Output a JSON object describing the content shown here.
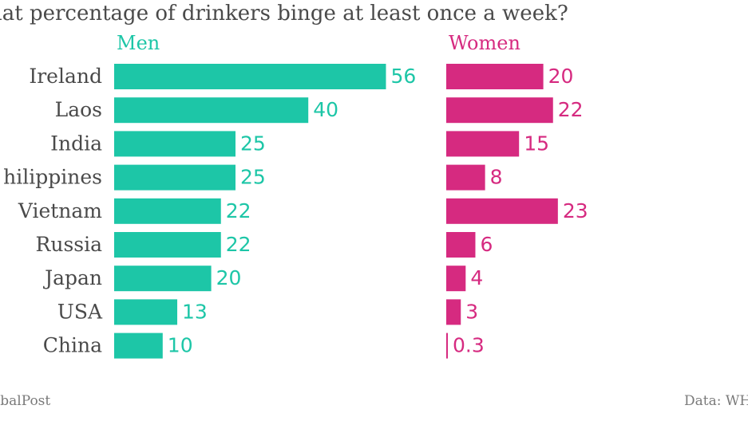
{
  "header": {
    "title": "hat percentage of drinkers binge at least once a week?"
  },
  "legend": {
    "men": "Men",
    "women": "Women"
  },
  "colors": {
    "men": "#1dc6a7",
    "women": "#d62a80",
    "label": "#4a4a4a"
  },
  "chart_data": {
    "type": "bar",
    "title": "hat percentage of drinkers binge at least once a week?",
    "categories": [
      "Ireland",
      "Laos",
      "India",
      "hilippines",
      "Vietnam",
      "Russia",
      "Japan",
      "USA",
      "China"
    ],
    "series": [
      {
        "name": "Men",
        "values": [
          56,
          40,
          25,
          25,
          22,
          22,
          20,
          13,
          10
        ],
        "labels": [
          "56",
          "40",
          "25",
          "25",
          "22",
          "22",
          "20",
          "13",
          "10"
        ]
      },
      {
        "name": "Women",
        "values": [
          20,
          22,
          15,
          8,
          23,
          6,
          4,
          3,
          0.3
        ],
        "labels": [
          "20",
          "22",
          "15",
          "8",
          "23",
          "6",
          "4",
          "3",
          "0.3"
        ]
      }
    ],
    "orientation": "horizontal",
    "grid": false,
    "legend_placement": "top"
  },
  "footer": {
    "source_left": "obalPost",
    "source_right": "Data: WH"
  }
}
